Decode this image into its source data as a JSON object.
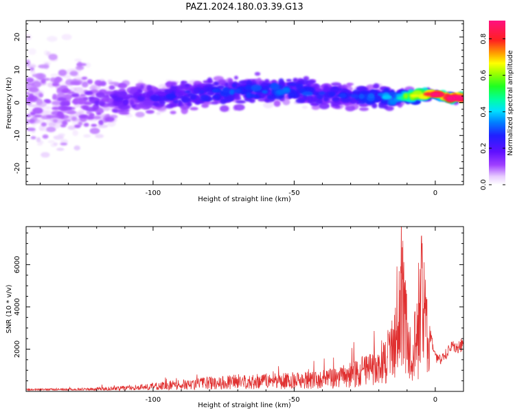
{
  "figure": {
    "title": "PAZ1.2024.180.03.39.G13",
    "colors": {
      "snr_line": "#e03030",
      "axis": "#000000"
    }
  },
  "chart_data": [
    {
      "type": "heatmap",
      "title": "PAZ1.2024.180.03.39.G13",
      "xlabel": "Height of straight line (km)",
      "ylabel": "Frequency (Hz)",
      "xlim": [
        -145,
        10
      ],
      "ylim": [
        -25,
        25
      ],
      "xticks": [
        -100,
        -50,
        0
      ],
      "yticks": [
        -20,
        -10,
        0,
        10,
        20
      ],
      "grid": false,
      "colorbar": {
        "label": "Normalized spectral amplitude",
        "range": [
          0,
          0.9
        ],
        "ticks": [
          "0.0",
          "0.2",
          "0.4",
          "0.6",
          "0.8"
        ],
        "colormap": "rainbow (white-purple-blue-cyan-green-yellow-red-pink)"
      },
      "description_of_signal": [
        {
          "x": -135,
          "freq_center": 0,
          "freq_spread": 24,
          "amplitude": 0.08
        },
        {
          "x": -110,
          "freq_center": 1,
          "freq_spread": 6,
          "amplitude": 0.15
        },
        {
          "x": -80,
          "freq_center": 3,
          "freq_spread": 6,
          "amplitude": 0.22
        },
        {
          "x": -55,
          "freq_center": 4,
          "freq_spread": 6,
          "amplitude": 0.25
        },
        {
          "x": -30,
          "freq_center": 2,
          "freq_spread": 5,
          "amplitude": 0.2
        },
        {
          "x": -15,
          "freq_center": 1.5,
          "freq_spread": 4,
          "amplitude": 0.3
        },
        {
          "x": -5,
          "freq_center": 2.5,
          "freq_spread": 2,
          "amplitude": 0.6
        },
        {
          "x": 0,
          "freq_center": 2.5,
          "freq_spread": 1.5,
          "amplitude": 0.75
        },
        {
          "x": 5,
          "freq_center": 1.5,
          "freq_spread": 1.5,
          "amplitude": 0.85
        },
        {
          "x": 9,
          "freq_center": 1.5,
          "freq_spread": 1.5,
          "amplitude": 0.85
        }
      ]
    },
    {
      "type": "line",
      "xlabel": "Height of straight line (km)",
      "ylabel": "SNR (10 * v/v)",
      "xlim": [
        -145,
        10
      ],
      "ylim": [
        0,
        7800
      ],
      "xticks": [
        -100,
        -50,
        0
      ],
      "yticks": [
        2000,
        4000,
        6000
      ],
      "grid": false,
      "series": [
        {
          "color": "#e03030",
          "x": [
            -145,
            -130,
            -120,
            -110,
            -100,
            -90,
            -80,
            -70,
            -60,
            -50,
            -40,
            -35,
            -30,
            -25,
            -20,
            -17,
            -15,
            -13,
            -12,
            -10,
            -8,
            -6,
            -5,
            -3,
            -2,
            0,
            2,
            4,
            6,
            8,
            10
          ],
          "y": [
            100,
            120,
            150,
            220,
            320,
            450,
            550,
            650,
            700,
            750,
            800,
            900,
            1100,
            1400,
            1800,
            2400,
            3200,
            4200,
            7600,
            3500,
            2800,
            3800,
            6500,
            3600,
            2800,
            1600,
            1500,
            1800,
            2100,
            2000,
            2300
          ]
        }
      ]
    }
  ]
}
